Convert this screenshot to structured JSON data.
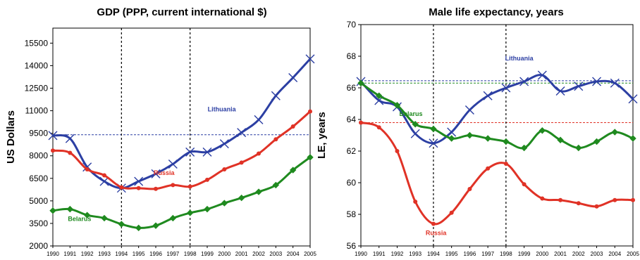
{
  "chart_data": [
    {
      "type": "line",
      "title": "GDP (PPP, current international $)",
      "xlabel": "",
      "ylabel": "US Dollars",
      "x": [
        "1990",
        "1991",
        "1992",
        "1993",
        "1994",
        "1995",
        "1996",
        "1997",
        "1998",
        "1999",
        "2000",
        "2001",
        "2002",
        "2003",
        "2004",
        "2005"
      ],
      "ylim": [
        2000,
        16500
      ],
      "yticks": [
        2000,
        3500,
        5000,
        6500,
        8000,
        9500,
        11000,
        12500,
        14000,
        15500
      ],
      "grid": false,
      "vlines": [
        "1994",
        "1998"
      ],
      "hlines": [
        {
          "value": 9400,
          "color": "#2c3fa3"
        }
      ],
      "series": [
        {
          "name": "Lithuania",
          "color": "#2c3fa3",
          "marker": "x",
          "values": [
            9350,
            9150,
            7250,
            6300,
            5850,
            6300,
            6800,
            7450,
            8250,
            8250,
            8800,
            9550,
            10400,
            12000,
            13200,
            14450
          ]
        },
        {
          "name": "Russia",
          "color": "#e03226",
          "marker": "dot",
          "values": [
            8350,
            8200,
            7100,
            6700,
            5900,
            5850,
            5800,
            6050,
            5950,
            6400,
            7100,
            7550,
            8150,
            9100,
            9950,
            10950
          ]
        },
        {
          "name": "Belarus",
          "color": "#1f8a1f",
          "marker": "diamond",
          "values": [
            4350,
            4450,
            4050,
            3850,
            3450,
            3200,
            3350,
            3850,
            4200,
            4450,
            4850,
            5200,
            5600,
            6050,
            7050,
            7900
          ]
        }
      ]
    },
    {
      "type": "line",
      "title": "Male life expectancy, years",
      "xlabel": "",
      "ylabel": "LE, years",
      "x": [
        "1990",
        "1991",
        "1992",
        "1993",
        "1994",
        "1995",
        "1996",
        "1997",
        "1998",
        "1999",
        "2000",
        "2001",
        "2002",
        "2003",
        "2004",
        "2005"
      ],
      "ylim": [
        56,
        70
      ],
      "yticks": [
        56,
        58,
        60,
        62,
        64,
        66,
        68,
        70
      ],
      "grid": false,
      "vlines": [
        "1994",
        "1998"
      ],
      "hlines": [
        {
          "value": 66.45,
          "color": "#2c3fa3"
        },
        {
          "value": 66.3,
          "color": "#1f8a1f"
        },
        {
          "value": 63.8,
          "color": "#e03226"
        }
      ],
      "series": [
        {
          "name": "Lithuania",
          "color": "#2c3fa3",
          "marker": "x",
          "values": [
            66.4,
            65.2,
            64.8,
            63.1,
            62.5,
            63.2,
            64.6,
            65.5,
            66.0,
            66.4,
            66.8,
            65.8,
            66.1,
            66.4,
            66.3,
            65.3
          ]
        },
        {
          "name": "Belarus",
          "color": "#1f8a1f",
          "marker": "diamond",
          "values": [
            66.3,
            65.5,
            64.9,
            63.7,
            63.4,
            62.8,
            63.0,
            62.8,
            62.6,
            62.2,
            63.3,
            62.7,
            62.2,
            62.6,
            63.2,
            62.8
          ]
        },
        {
          "name": "Russia",
          "color": "#e03226",
          "marker": "dot",
          "values": [
            63.8,
            63.5,
            62.0,
            58.8,
            57.4,
            58.1,
            59.6,
            60.9,
            61.2,
            59.9,
            59.0,
            58.9,
            58.7,
            58.5,
            58.9,
            58.9
          ]
        }
      ]
    }
  ]
}
